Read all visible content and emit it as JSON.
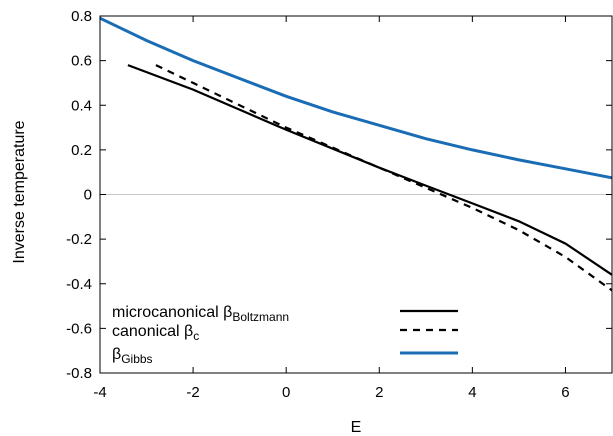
{
  "chart_data": {
    "type": "line",
    "xlabel": "E",
    "ylabel": "Inverse temperature",
    "xlim": [
      -4,
      7
    ],
    "ylim": [
      -0.8,
      0.8
    ],
    "x_ticks": [
      "-4",
      "-2",
      "0",
      "2",
      "4",
      "6"
    ],
    "y_ticks": [
      "0.8",
      "0.6",
      "0.4",
      "0.2",
      "0",
      "-0.2",
      "-0.4",
      "-0.6",
      "-0.8"
    ],
    "zero_line": true,
    "grid": false,
    "legend_position": "bottom-left",
    "series": [
      {
        "name": "microcanonical β",
        "name_sub": "Boltzmann",
        "style": "solid",
        "color": "#000000",
        "points": [
          [
            -3.4,
            0.58
          ],
          [
            -2,
            0.47
          ],
          [
            0,
            0.29
          ],
          [
            2,
            0.12
          ],
          [
            3,
            0.04
          ],
          [
            4,
            -0.04
          ],
          [
            5,
            -0.12
          ],
          [
            6,
            -0.22
          ],
          [
            7,
            -0.36
          ]
        ]
      },
      {
        "name": "canonical β",
        "name_sub": "c",
        "style": "dashed",
        "color": "#000000",
        "points": [
          [
            -2.8,
            0.58
          ],
          [
            -2,
            0.5
          ],
          [
            0,
            0.3
          ],
          [
            2,
            0.12
          ],
          [
            3,
            0.03
          ],
          [
            4,
            -0.06
          ],
          [
            5,
            -0.16
          ],
          [
            6,
            -0.28
          ],
          [
            7,
            -0.43
          ]
        ]
      },
      {
        "name": "β",
        "name_sub": "Gibbs",
        "style": "solid",
        "color": "#1a6db5",
        "points": [
          [
            -4,
            0.79
          ],
          [
            -3,
            0.69
          ],
          [
            -2,
            0.6
          ],
          [
            -1,
            0.52
          ],
          [
            0,
            0.44
          ],
          [
            1,
            0.37
          ],
          [
            2,
            0.31
          ],
          [
            3,
            0.25
          ],
          [
            4,
            0.2
          ],
          [
            5,
            0.155
          ],
          [
            6,
            0.115
          ],
          [
            7,
            0.075
          ]
        ]
      }
    ]
  }
}
